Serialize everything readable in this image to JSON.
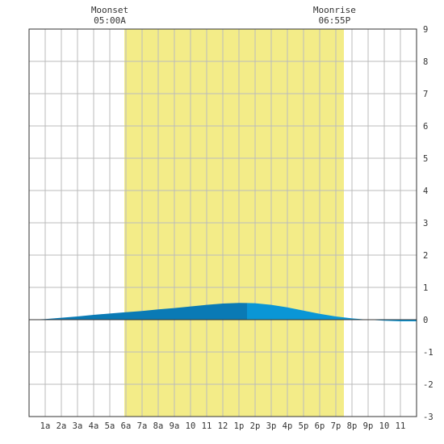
{
  "chart_data": {
    "type": "area",
    "x_tick_labels": [
      "1a",
      "2a",
      "3a",
      "4a",
      "5a",
      "6a",
      "7a",
      "8a",
      "9a",
      "10",
      "11",
      "12",
      "1p",
      "2p",
      "3p",
      "4p",
      "5p",
      "6p",
      "7p",
      "8p",
      "9p",
      "10",
      "11"
    ],
    "x_range_hours": [
      0,
      24
    ],
    "ylim": [
      -3,
      9
    ],
    "y_ticks": [
      -3,
      -2,
      -1,
      0,
      1,
      2,
      3,
      4,
      5,
      6,
      7,
      8,
      9
    ],
    "grid": true,
    "daylight": {
      "start_hour": 5.9,
      "end_hour": 19.5,
      "color": "#f3ec88"
    },
    "annotations": [
      {
        "label": "Moonset",
        "time": "05:00A",
        "hour": 5.0
      },
      {
        "label": "Moonrise",
        "time": "06:55P",
        "hour": 18.92
      }
    ],
    "tide": {
      "peak_hour": 13.5,
      "colors": {
        "rising": "#0a7ab5",
        "falling": "#0a96d6"
      },
      "points": [
        {
          "hour": 0,
          "value": 0.0
        },
        {
          "hour": 1,
          "value": 0.02
        },
        {
          "hour": 2,
          "value": 0.06
        },
        {
          "hour": 3,
          "value": 0.1
        },
        {
          "hour": 4,
          "value": 0.15
        },
        {
          "hour": 5,
          "value": 0.19
        },
        {
          "hour": 6,
          "value": 0.23
        },
        {
          "hour": 7,
          "value": 0.27
        },
        {
          "hour": 8,
          "value": 0.32
        },
        {
          "hour": 9,
          "value": 0.36
        },
        {
          "hour": 10,
          "value": 0.41
        },
        {
          "hour": 11,
          "value": 0.46
        },
        {
          "hour": 12,
          "value": 0.5
        },
        {
          "hour": 13,
          "value": 0.52
        },
        {
          "hour": 14,
          "value": 0.51
        },
        {
          "hour": 15,
          "value": 0.46
        },
        {
          "hour": 16,
          "value": 0.38
        },
        {
          "hour": 17,
          "value": 0.28
        },
        {
          "hour": 18,
          "value": 0.18
        },
        {
          "hour": 19,
          "value": 0.1
        },
        {
          "hour": 20,
          "value": 0.04
        },
        {
          "hour": 21,
          "value": 0.0
        },
        {
          "hour": 22,
          "value": -0.03
        },
        {
          "hour": 23,
          "value": -0.05
        },
        {
          "hour": 24,
          "value": -0.05
        }
      ]
    }
  }
}
